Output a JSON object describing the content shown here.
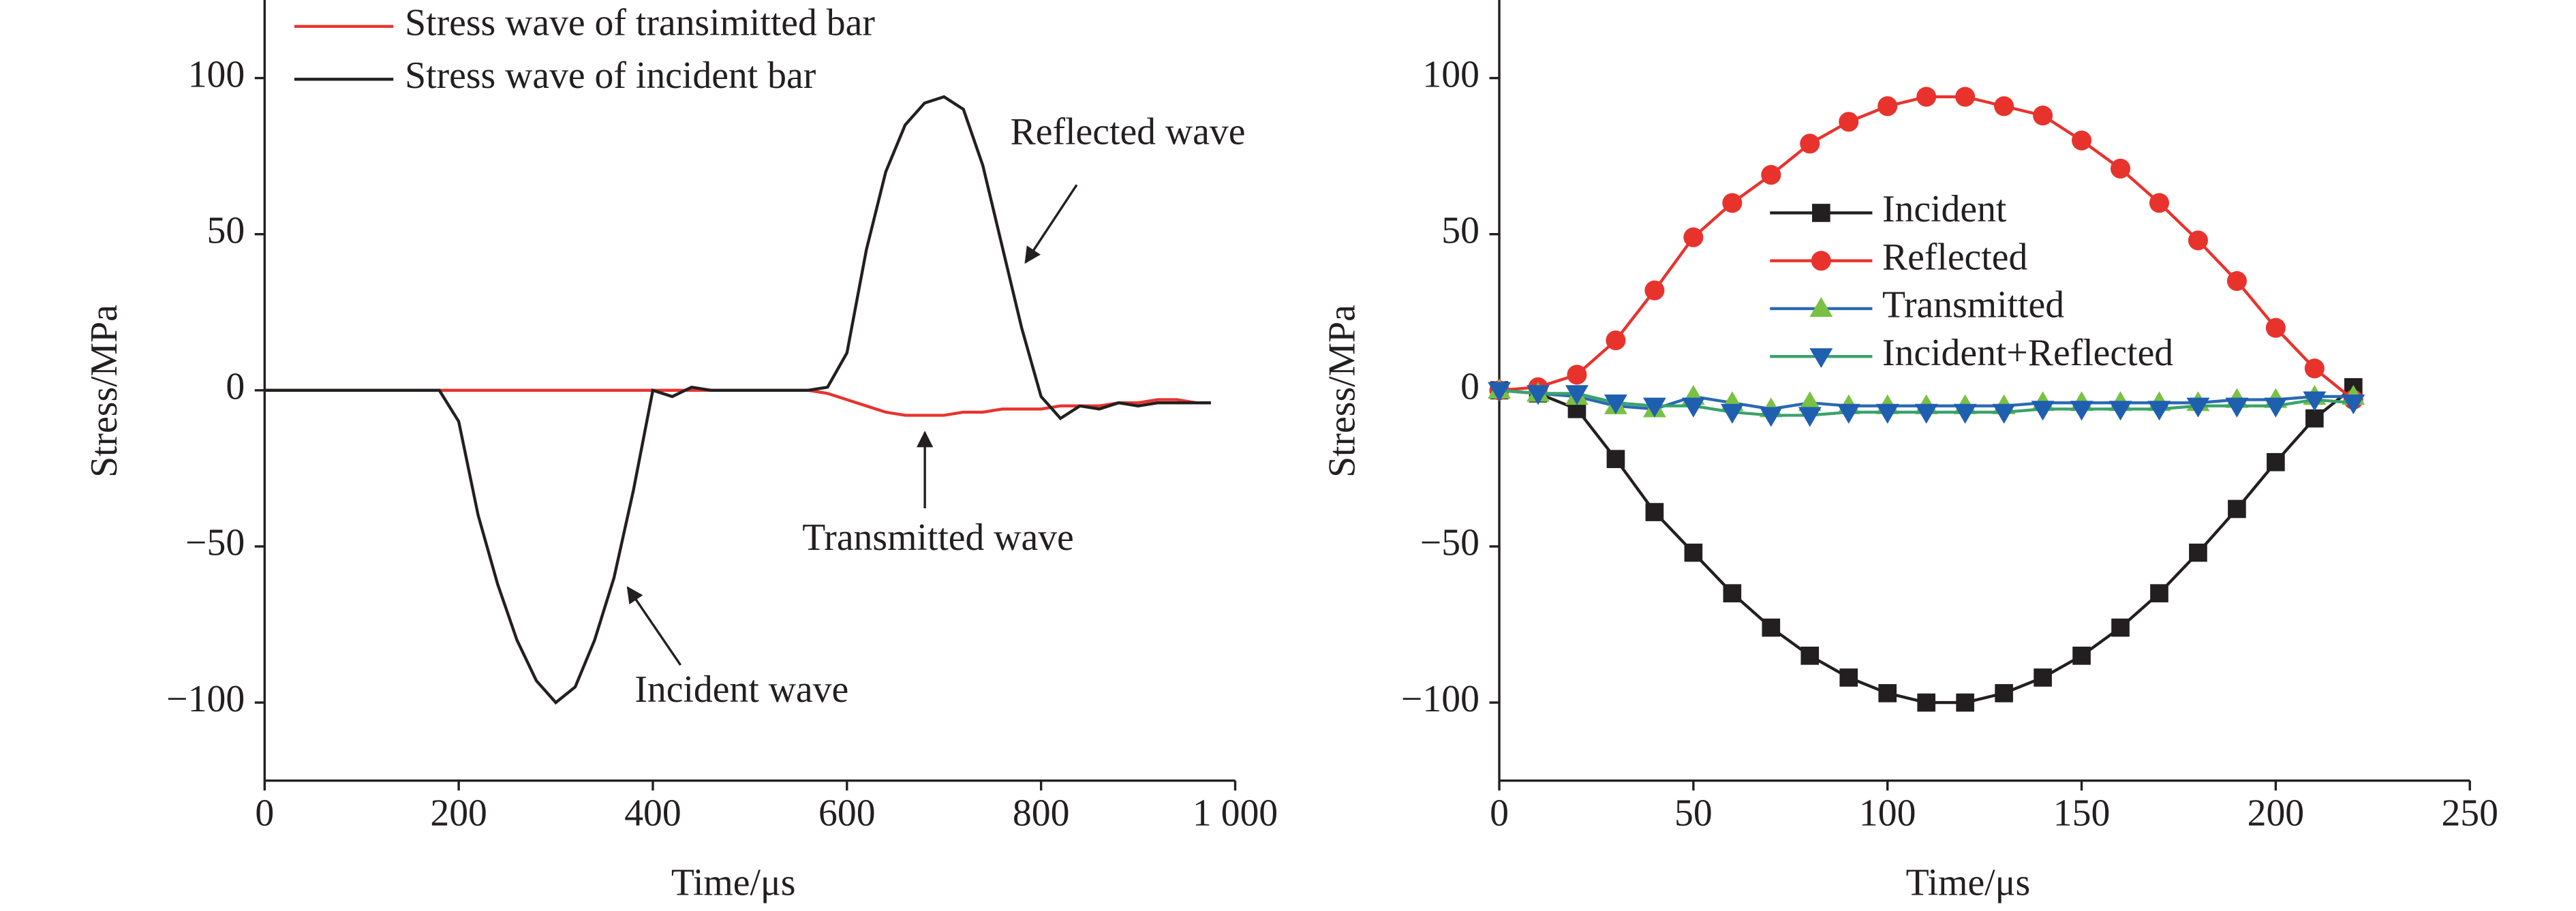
{
  "chart_data": [
    {
      "type": "line",
      "xlabel": "Time/μs",
      "ylabel": "Stress/MPa",
      "xlim": [
        0,
        1000
      ],
      "ylim": [
        -125,
        125
      ],
      "xticks": [
        0,
        200,
        400,
        600,
        800,
        {
          "value": 1000,
          "label": "1 000"
        }
      ],
      "yticks": [
        {
          "value": -100,
          "label": "−100"
        },
        {
          "value": -50,
          "label": "−50"
        },
        0,
        50,
        100
      ],
      "legend": "upper left",
      "annotations": [
        "Reflected wave",
        "Transmitted wave",
        "Incident wave"
      ],
      "x": [
        0,
        100,
        180,
        200,
        220,
        240,
        260,
        280,
        300,
        320,
        340,
        360,
        380,
        400,
        420,
        440,
        460,
        480,
        500,
        520,
        540,
        560,
        580,
        600,
        620,
        640,
        660,
        680,
        700,
        720,
        740,
        760,
        780,
        800,
        820,
        840,
        860,
        880,
        900,
        920,
        940,
        960,
        975
      ],
      "series": [
        {
          "name": "Stress wave of transimitted bar",
          "color": "#e8332d",
          "values": [
            0,
            0,
            0,
            0,
            0,
            0,
            0,
            0,
            0,
            0,
            0,
            0,
            0,
            0,
            0,
            0,
            0,
            0,
            0,
            0,
            0,
            0,
            -1,
            -3,
            -5,
            -7,
            -8,
            -8,
            -8,
            -7,
            -7,
            -6,
            -6,
            -6,
            -5,
            -5,
            -5,
            -4,
            -4,
            -3,
            -3,
            -4,
            -4
          ]
        },
        {
          "name": "Stress wave of incident bar",
          "color": "#231f20",
          "values": [
            0,
            0,
            0,
            -10,
            -40,
            -62,
            -80,
            -93,
            -100,
            -95,
            -80,
            -60,
            -32,
            0,
            -2,
            1,
            0,
            0,
            0,
            0,
            0,
            0,
            1,
            12,
            45,
            70,
            85,
            92,
            94,
            90,
            72,
            46,
            20,
            -2,
            -9,
            -5,
            -6,
            -4,
            -5,
            -4,
            -4,
            -4,
            -4
          ]
        }
      ]
    },
    {
      "type": "line",
      "xlabel": "Time/μs",
      "ylabel": "Stress/MPa",
      "xlim": [
        0,
        250
      ],
      "ylim": [
        -125,
        125
      ],
      "xticks": [
        0,
        50,
        100,
        150,
        200,
        250
      ],
      "yticks": [
        {
          "value": -100,
          "label": "−100"
        },
        {
          "value": -50,
          "label": "−50"
        },
        0,
        50,
        100
      ],
      "legend": "center",
      "x": [
        0,
        10,
        20,
        30,
        40,
        50,
        60,
        70,
        80,
        90,
        100,
        110,
        120,
        130,
        140,
        150,
        160,
        170,
        180,
        190,
        200,
        210,
        220
      ],
      "series": [
        {
          "name": "Incident",
          "color": "#231f20",
          "marker": "square",
          "marker_color": "#231f20",
          "values": [
            0,
            -1,
            -6,
            -22,
            -39,
            -52,
            -65,
            -76,
            -85,
            -92,
            -97,
            -100,
            -100,
            -97,
            -92,
            -85,
            -76,
            -65,
            -52,
            -38,
            -23,
            -9,
            1
          ]
        },
        {
          "name": "Reflected",
          "color": "#e8332d",
          "marker": "circle",
          "marker_color": "#e8332d",
          "values": [
            0,
            1,
            5,
            16,
            32,
            49,
            60,
            69,
            79,
            86,
            91,
            94,
            94,
            91,
            88,
            80,
            71,
            60,
            48,
            35,
            20,
            7,
            -3
          ]
        },
        {
          "name": "Transmitted",
          "color": "#2a6ab3",
          "marker": "triangle-up",
          "marker_color": "#7ac143",
          "values": [
            0,
            -1,
            -2,
            -5,
            -6,
            -2,
            -4,
            -6,
            -4,
            -5,
            -5,
            -5,
            -5,
            -5,
            -4,
            -4,
            -4,
            -4,
            -4,
            -3,
            -3,
            -2,
            -2
          ]
        },
        {
          "name": "Incident+Reflected",
          "color": "#3aa36b",
          "marker": "triangle-down",
          "marker_color": "#1f5fb0",
          "values": [
            0,
            -1,
            -1,
            -4,
            -5,
            -5,
            -7,
            -8,
            -8,
            -7,
            -7,
            -7,
            -7,
            -7,
            -6,
            -6,
            -6,
            -6,
            -5,
            -5,
            -5,
            -3,
            -4
          ]
        }
      ]
    }
  ]
}
